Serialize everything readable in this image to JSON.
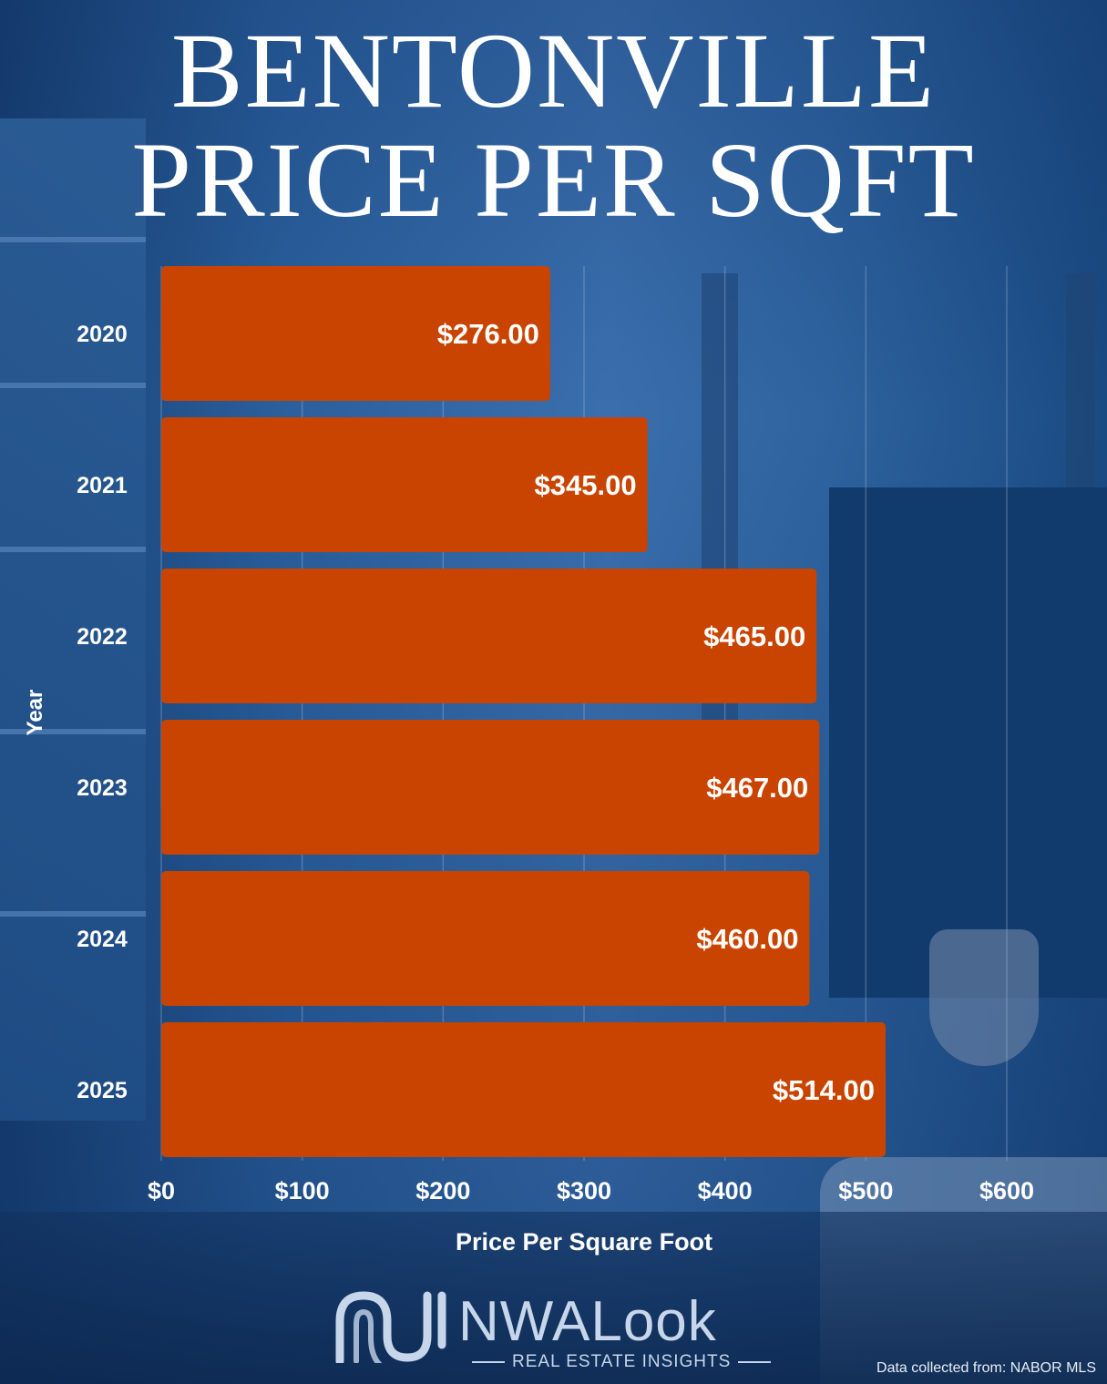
{
  "title_line1": "BENTONVILLE",
  "title_line2": "PRICE PER SQFT",
  "chart_data": {
    "type": "bar",
    "orientation": "horizontal",
    "categories": [
      "2020",
      "2021",
      "2022",
      "2023",
      "2024",
      "2025"
    ],
    "values": [
      276,
      345,
      465,
      467,
      460,
      514
    ],
    "data_labels": [
      "$276.00",
      "$345.00",
      "$465.00",
      "$467.00",
      "$460.00",
      "$514.00"
    ],
    "xlim": [
      0,
      600
    ],
    "xticks": [
      0,
      100,
      200,
      300,
      400,
      500,
      600
    ],
    "xtick_labels": [
      "$0",
      "$100",
      "$200",
      "$300",
      "$400",
      "$500",
      "$600"
    ],
    "xlabel": "Price Per Square Foot",
    "ylabel": "Year",
    "bar_color": "#c94400",
    "grid": true
  },
  "logo": {
    "name": "NWALook",
    "tagline": "REAL ESTATE INSIGHTS"
  },
  "source_note": "Data collected from: NABOR MLS"
}
